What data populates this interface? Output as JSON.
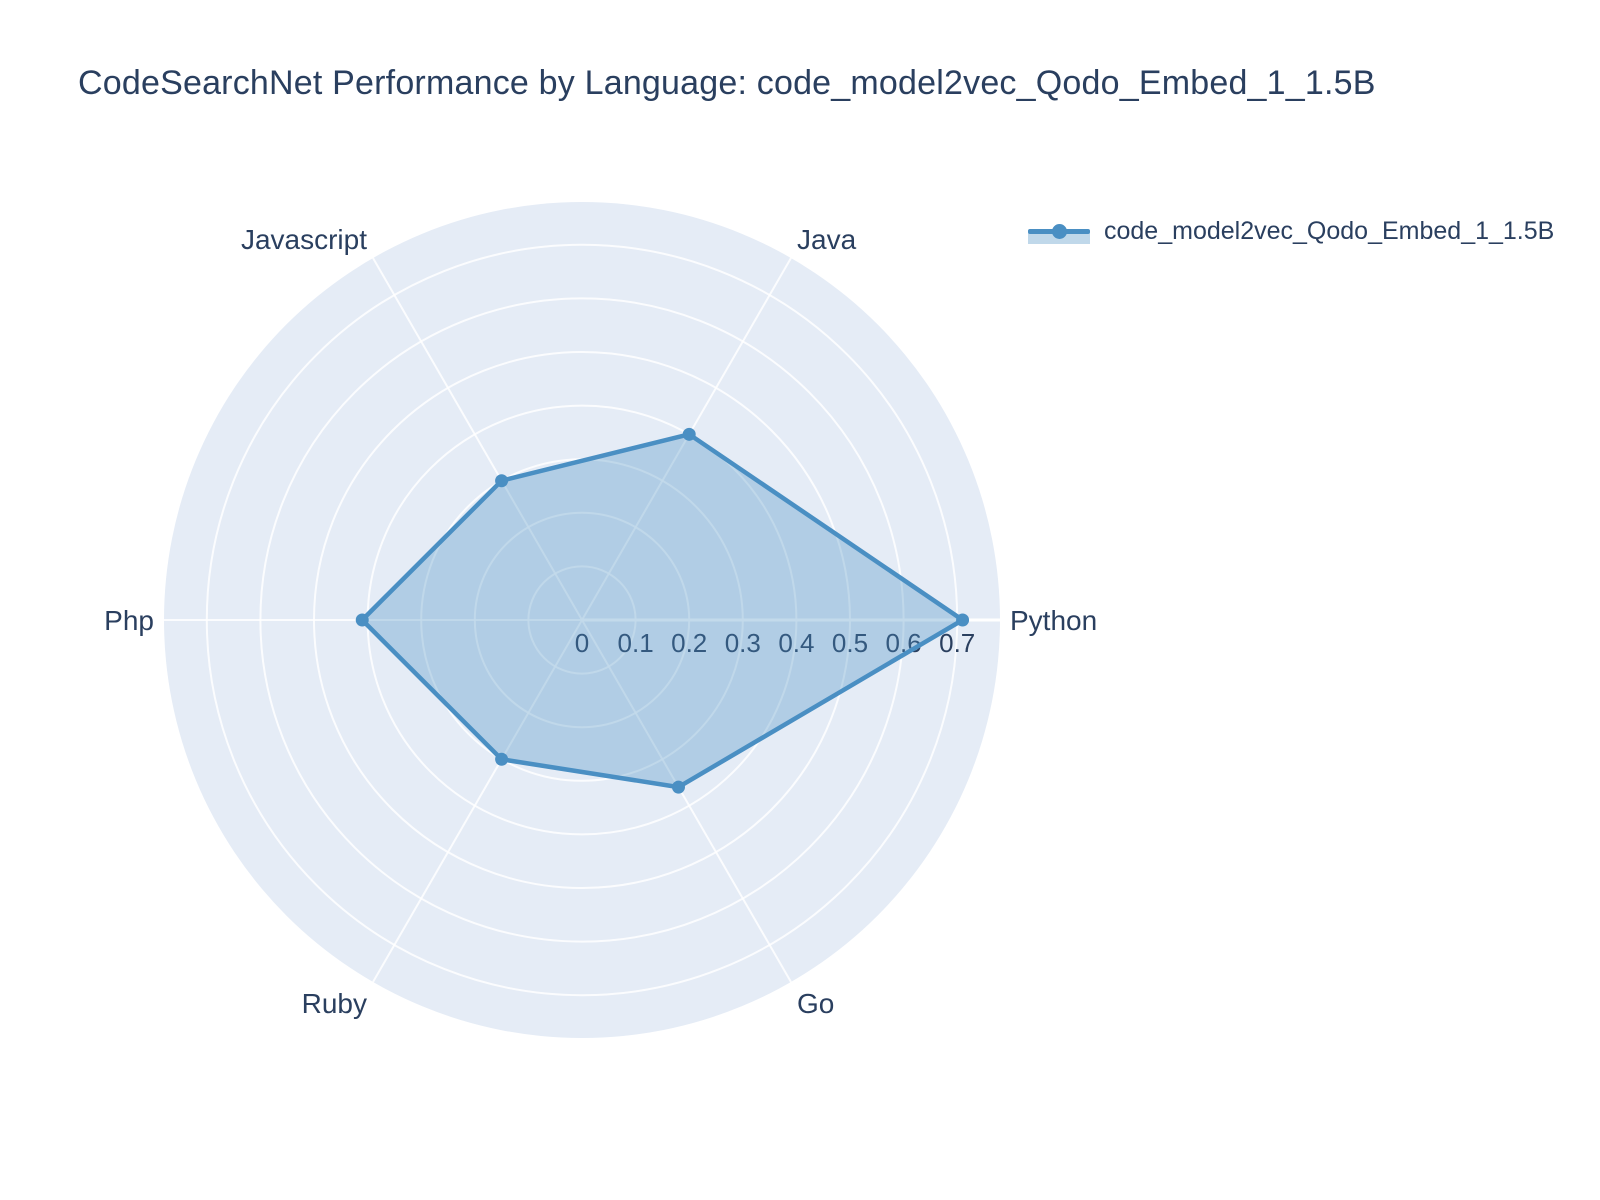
{
  "header": {
    "title": "CodeSearchNet Performance by Language: code_model2vec_Qodo_Embed_1_1.5B"
  },
  "legend": {
    "items": [
      {
        "label": "code_model2vec_Qodo_Embed_1_1.5B",
        "line_color": "#4a8fc3",
        "fill_color": "rgba(74,143,195,0.35)"
      }
    ]
  },
  "chart_data": {
    "type": "radar",
    "title": "CodeSearchNet Performance by Language: code_model2vec_Qodo_Embed_1_1.5B",
    "categories": [
      "Python",
      "Java",
      "Javascript",
      "Php",
      "Ruby",
      "Go"
    ],
    "series": [
      {
        "name": "code_model2vec_Qodo_Embed_1_1.5B",
        "values": [
          0.71,
          0.4,
          0.3,
          0.41,
          0.3,
          0.36
        ],
        "line_color": "#4a8fc3",
        "fill_color": "rgba(74,143,195,0.33)",
        "marker": "circle"
      }
    ],
    "radial_axis": {
      "ticks": [
        0,
        0.1,
        0.2,
        0.3,
        0.4,
        0.5,
        0.6,
        0.7
      ],
      "tick_labels": [
        "0",
        "0.1",
        "0.2",
        "0.3",
        "0.4",
        "0.5",
        "0.6",
        "0.7"
      ],
      "range": [
        0,
        0.78
      ]
    },
    "angular_axis": {
      "direction": "counterclockwise",
      "start_angle_deg": 0
    },
    "style": {
      "plot_bg": "#E5ECF6",
      "grid_color": "#ffffff",
      "text_color": "#2a3f5f"
    },
    "grid": true,
    "legend_position": "top-right"
  }
}
